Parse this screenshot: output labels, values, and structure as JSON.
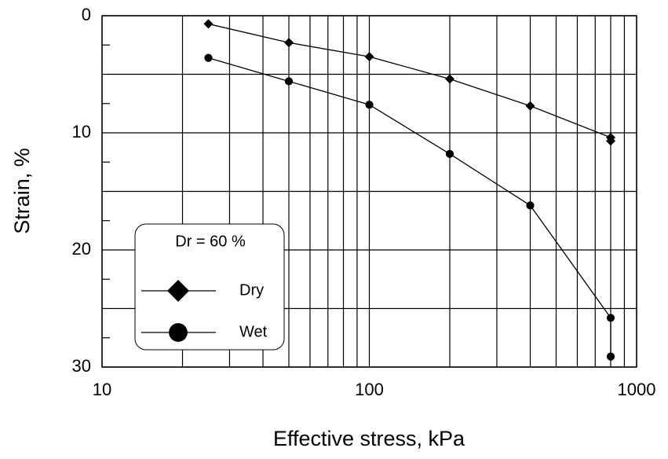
{
  "chart_data": {
    "type": "line",
    "x_label": "Effective stress,  kPa",
    "y_label": "Strain,  %",
    "x": [
      25,
      50,
      100,
      200,
      400,
      800,
      800
    ],
    "series": [
      {
        "name": "Dry",
        "color": "#000000",
        "marker": "diamond",
        "values": [
          0.7,
          2.3,
          3.5,
          5.4,
          7.7,
          10.4,
          10.7
        ]
      },
      {
        "name": "Wet",
        "color": "#000000",
        "marker": "circle",
        "values": [
          3.6,
          5.6,
          7.6,
          11.8,
          16.2,
          25.8,
          29.1
        ]
      }
    ],
    "xlim": [
      10,
      1000
    ],
    "xticks": [
      10,
      100,
      1000
    ],
    "xscale": "log",
    "ylim": [
      0,
      30
    ],
    "yticks": [
      0,
      10,
      20,
      30
    ],
    "ygrid": [
      5,
      15,
      25
    ],
    "yinverted": true,
    "grid": true,
    "legend": {
      "title": "Dr = 60 %",
      "position": "lower left"
    }
  }
}
